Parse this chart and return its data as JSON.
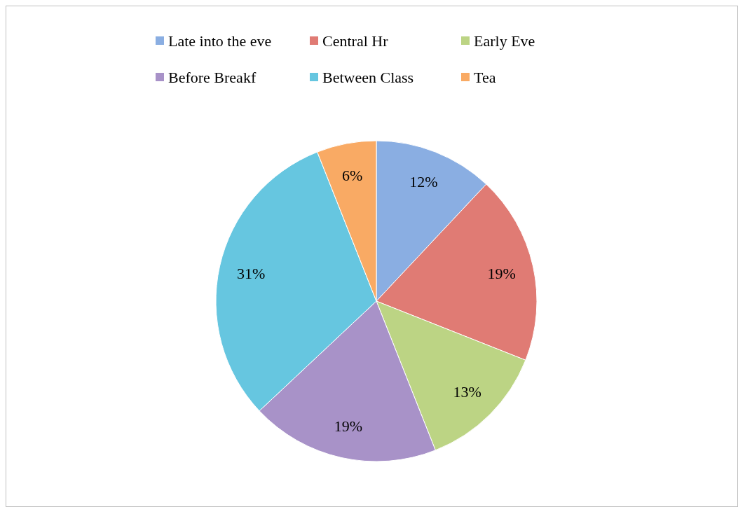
{
  "chart_data": {
    "type": "pie",
    "categories": [
      "Late into the eve",
      "Central Hr",
      "Early Eve",
      "Before Breakf",
      "Between Class",
      "Tea"
    ],
    "values": [
      12,
      19,
      13,
      19,
      31,
      6
    ],
    "colors": [
      "#8aaee2",
      "#e07b74",
      "#bcd484",
      "#a892c8",
      "#66c6e0",
      "#f9aa64"
    ],
    "value_labels": [
      "12%",
      "19%",
      "13%",
      "19%",
      "31%",
      "6%"
    ],
    "legend": "top"
  }
}
